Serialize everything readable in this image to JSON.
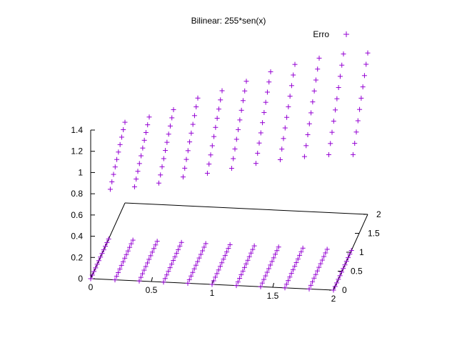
{
  "chart_data": {
    "type": "scatter",
    "title": "Bilinear: 255*sen(x)",
    "legend": {
      "label": "Erro",
      "position": "top-right",
      "marker": "+"
    },
    "series": [
      {
        "name": "Erro",
        "color": "#9400d3",
        "marker": "+",
        "x_lines": [
          0,
          0.2,
          0.4,
          0.6,
          0.8,
          1.0,
          1.2,
          1.4,
          1.6,
          1.8,
          2.0
        ],
        "lines": [
          {
            "x": 0.0,
            "z_start": 0.0,
            "z_end": 0.76
          },
          {
            "x": 0.2,
            "z_start": 0.0,
            "z_end": 0.82
          },
          {
            "x": 0.4,
            "z_start": 0.0,
            "z_end": 0.9
          },
          {
            "x": 0.6,
            "z_start": 0.0,
            "z_end": 1.02
          },
          {
            "x": 0.8,
            "z_start": 0.0,
            "z_end": 1.1
          },
          {
            "x": 1.0,
            "z_start": 0.0,
            "z_end": 1.2
          },
          {
            "x": 1.2,
            "z_start": 0.0,
            "z_end": 1.3
          },
          {
            "x": 1.4,
            "z_start": 0.0,
            "z_end": 1.38
          },
          {
            "x": 1.6,
            "z_start": 0.0,
            "z_end": 1.45
          },
          {
            "x": 1.8,
            "z_start": 0.0,
            "z_end": 1.5
          },
          {
            "x": 2.0,
            "z_start": 0.0,
            "z_end": 1.52
          }
        ],
        "y_range": [
          0,
          2
        ]
      }
    ],
    "axes": {
      "x": {
        "range": [
          0,
          2
        ],
        "ticks": [
          "0",
          "0.5",
          "1",
          "1.5",
          "2"
        ]
      },
      "y": {
        "range": [
          0,
          2
        ],
        "ticks": [
          "0",
          "0.5",
          "1",
          "1.5",
          "2"
        ]
      },
      "z": {
        "range": [
          0,
          1.4
        ],
        "ticks": [
          "0",
          "0.2",
          "0.4",
          "0.6",
          "0.8",
          "1",
          "1.2",
          "1.4"
        ]
      }
    },
    "grid": false
  }
}
